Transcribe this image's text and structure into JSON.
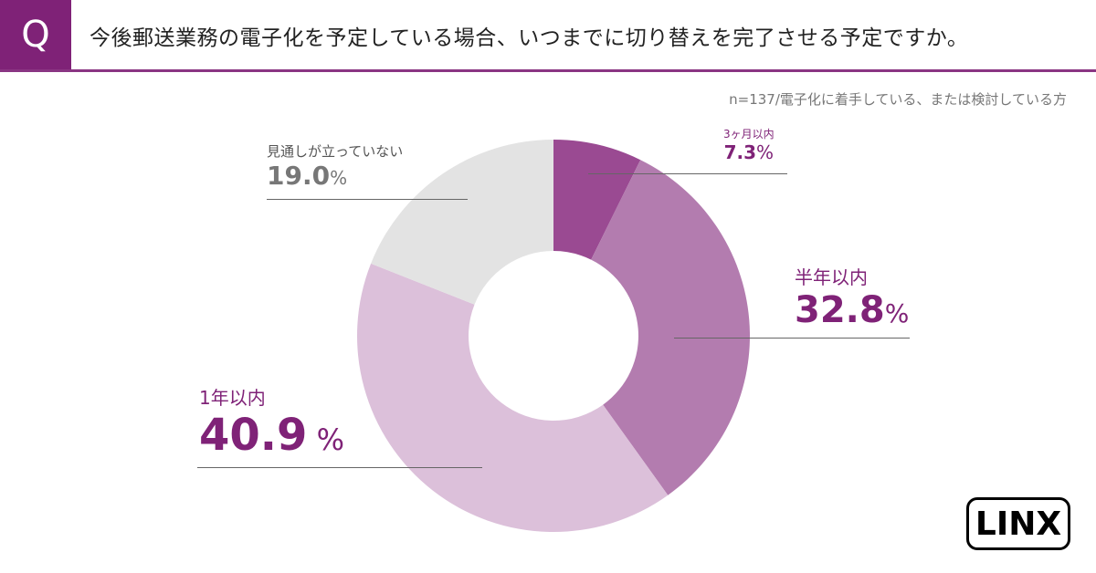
{
  "header": {
    "q_label": "Q",
    "title": "今後郵送業務の電子化を予定している場合、いつまでに切り替えを完了させる予定ですか。",
    "note": "n=137/電子化に着手している、または検討している方"
  },
  "logo_text": "LINX",
  "colors": {
    "accent": "#7f2277"
  },
  "chart_data": {
    "type": "pie",
    "donut": true,
    "categories": [
      "3ヶ月以内",
      "半年以内",
      "1年以内",
      "見通しが立っていない"
    ],
    "values": [
      7.3,
      32.8,
      40.9,
      19.0
    ],
    "value_labels": [
      "7.3",
      "32.8",
      "40.9",
      "19.0"
    ],
    "unit": "%",
    "colors": [
      "#9a4a92",
      "#b37caf",
      "#dcc0da",
      "#e3e3e3"
    ]
  }
}
